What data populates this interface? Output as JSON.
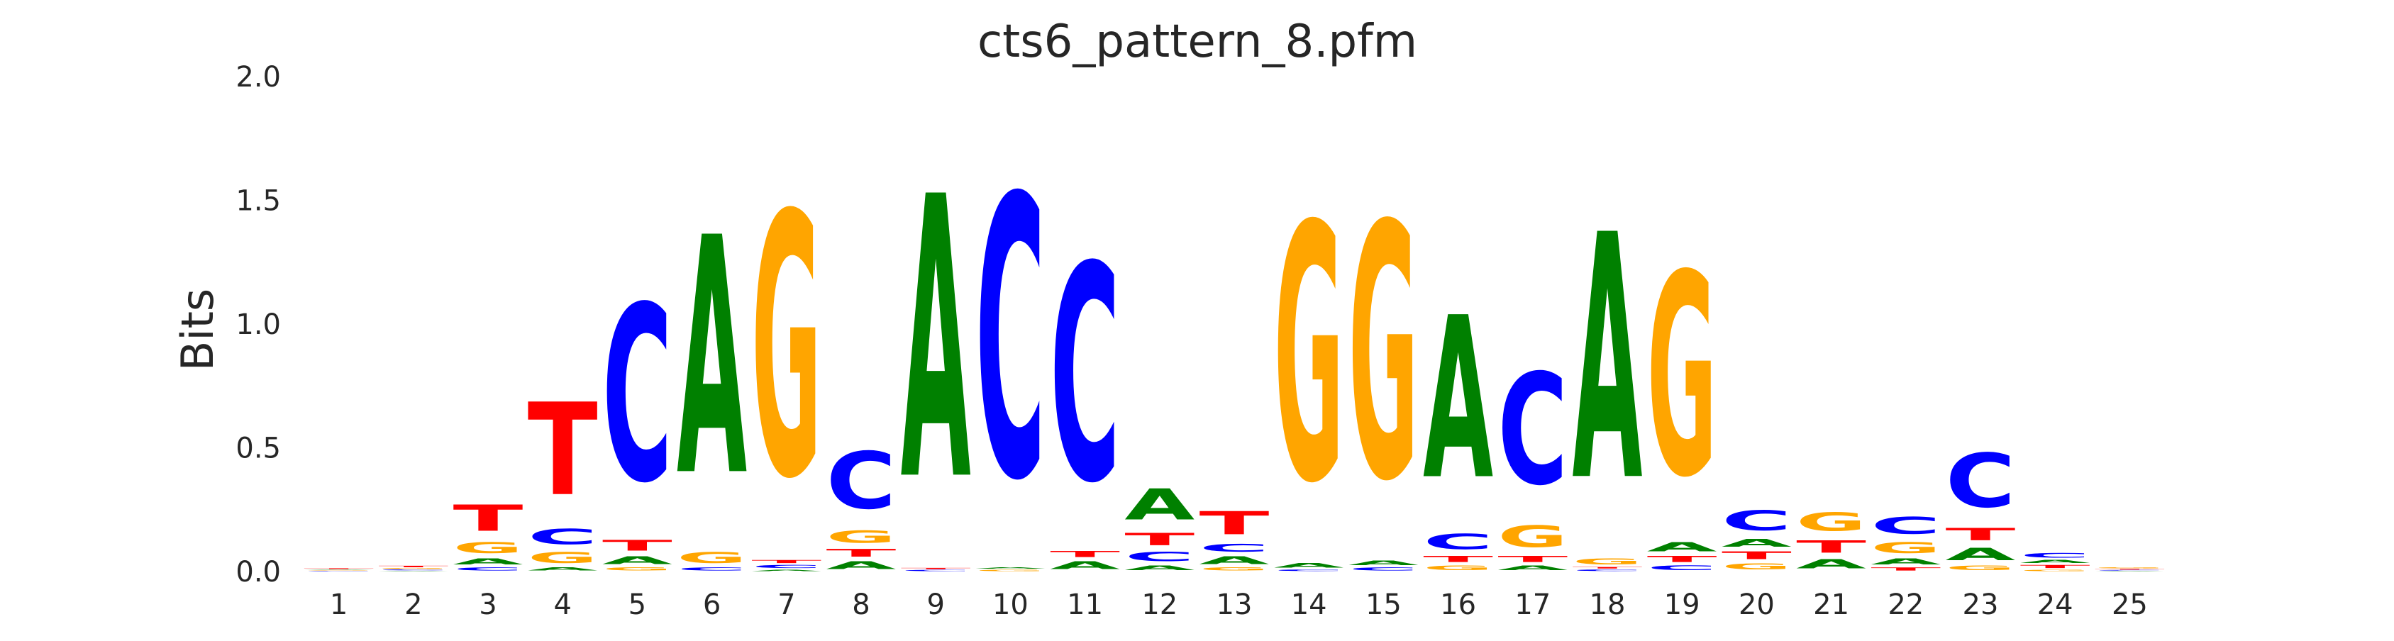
{
  "chart_data": {
    "type": "sequence-logo",
    "title": "cts6_pattern_8.pfm",
    "xlabel": "",
    "ylabel": "Bits",
    "ylim": [
      0,
      2.0
    ],
    "y_ticks": [
      "0.0",
      "0.5",
      "1.0",
      "1.5",
      "2.0"
    ],
    "x_ticks": [
      "1",
      "2",
      "3",
      "4",
      "5",
      "6",
      "7",
      "8",
      "9",
      "10",
      "11",
      "12",
      "13",
      "14",
      "15",
      "16",
      "17",
      "18",
      "19",
      "20",
      "21",
      "22",
      "23",
      "24",
      "25"
    ],
    "grid": false,
    "colors": {
      "A": "#008000",
      "C": "#0000ff",
      "G": "#ffa500",
      "T": "#ff0000"
    },
    "positions": [
      {
        "pos": 1,
        "stack": [
          [
            "C",
            0.003
          ],
          [
            "G",
            0.003
          ],
          [
            "A",
            0.003
          ],
          [
            "T",
            0.005
          ]
        ]
      },
      {
        "pos": 2,
        "stack": [
          [
            "A",
            0.004
          ],
          [
            "C",
            0.005
          ],
          [
            "G",
            0.006
          ],
          [
            "T",
            0.01
          ]
        ]
      },
      {
        "pos": 3,
        "stack": [
          [
            "C",
            0.02
          ],
          [
            "A",
            0.04
          ],
          [
            "G",
            0.07
          ],
          [
            "T",
            0.17
          ]
        ]
      },
      {
        "pos": 4,
        "stack": [
          [
            "A",
            0.02
          ],
          [
            "G",
            0.07
          ],
          [
            "C",
            0.1
          ],
          [
            "T",
            0.6
          ]
        ]
      },
      {
        "pos": 5,
        "stack": [
          [
            "G",
            0.02
          ],
          [
            "A",
            0.05
          ],
          [
            "T",
            0.07
          ],
          [
            "C",
            1.14
          ]
        ]
      },
      {
        "pos": 6,
        "stack": [
          [
            "C",
            0.02
          ],
          [
            "G",
            0.07
          ],
          [
            "A",
            1.54
          ]
        ]
      },
      {
        "pos": 7,
        "stack": [
          [
            "A",
            0.01
          ],
          [
            "C",
            0.02
          ],
          [
            "T",
            0.02
          ],
          [
            "G",
            1.7
          ]
        ]
      },
      {
        "pos": 8,
        "stack": [
          [
            "A",
            0.05
          ],
          [
            "T",
            0.05
          ],
          [
            "G",
            0.08
          ],
          [
            "C",
            0.37
          ]
        ]
      },
      {
        "pos": 9,
        "stack": [
          [
            "C",
            0.008
          ],
          [
            "T",
            0.008
          ],
          [
            "A",
            1.83
          ]
        ]
      },
      {
        "pos": 10,
        "stack": [
          [
            "G",
            0.01
          ],
          [
            "A",
            0.01
          ],
          [
            "C",
            1.82
          ]
        ]
      },
      {
        "pos": 11,
        "stack": [
          [
            "A",
            0.05
          ],
          [
            "T",
            0.04
          ],
          [
            "C",
            1.4
          ]
        ]
      },
      {
        "pos": 12,
        "stack": [
          [
            "A",
            0.03
          ],
          [
            "C",
            0.06
          ],
          [
            "T",
            0.08
          ],
          [
            "A",
            0.2
          ]
        ]
      },
      {
        "pos": 13,
        "stack": [
          [
            "G",
            0.02
          ],
          [
            "A",
            0.05
          ],
          [
            "C",
            0.05
          ],
          [
            "T",
            0.15
          ]
        ]
      },
      {
        "pos": 14,
        "stack": [
          [
            "C",
            0.01
          ],
          [
            "A",
            0.03
          ],
          [
            "G",
            1.66
          ]
        ]
      },
      {
        "pos": 15,
        "stack": [
          [
            "C",
            0.02
          ],
          [
            "A",
            0.03
          ],
          [
            "G",
            1.65
          ]
        ]
      },
      {
        "pos": 16,
        "stack": [
          [
            "G",
            0.03
          ],
          [
            "T",
            0.04
          ],
          [
            "C",
            0.1
          ],
          [
            "A",
            1.05
          ]
        ]
      },
      {
        "pos": 17,
        "stack": [
          [
            "A",
            0.03
          ],
          [
            "T",
            0.04
          ],
          [
            "G",
            0.14
          ],
          [
            "C",
            0.72
          ]
        ]
      },
      {
        "pos": 18,
        "stack": [
          [
            "C",
            0.01
          ],
          [
            "T",
            0.01
          ],
          [
            "G",
            0.04
          ],
          [
            "A",
            1.59
          ]
        ]
      },
      {
        "pos": 19,
        "stack": [
          [
            "C",
            0.03
          ],
          [
            "T",
            0.04
          ],
          [
            "A",
            0.06
          ],
          [
            "G",
            1.31
          ]
        ]
      },
      {
        "pos": 20,
        "stack": [
          [
            "G",
            0.04
          ],
          [
            "T",
            0.05
          ],
          [
            "A",
            0.05
          ],
          [
            "C",
            0.13
          ]
        ]
      },
      {
        "pos": 21,
        "stack": [
          [
            "A",
            0.06
          ],
          [
            "T",
            0.08
          ],
          [
            "G",
            0.12
          ]
        ]
      },
      {
        "pos": 22,
        "stack": [
          [
            "T",
            0.02
          ],
          [
            "A",
            0.04
          ],
          [
            "G",
            0.07
          ],
          [
            "C",
            0.11
          ]
        ]
      },
      {
        "pos": 23,
        "stack": [
          [
            "G",
            0.03
          ],
          [
            "A",
            0.08
          ],
          [
            "T",
            0.08
          ],
          [
            "C",
            0.35
          ]
        ]
      },
      {
        "pos": 24,
        "stack": [
          [
            "G",
            0.01
          ],
          [
            "T",
            0.02
          ],
          [
            "A",
            0.02
          ],
          [
            "C",
            0.03
          ]
        ]
      },
      {
        "pos": 25,
        "stack": [
          [
            "A",
            0.003
          ],
          [
            "C",
            0.004
          ],
          [
            "T",
            0.005
          ],
          [
            "G",
            0.006
          ]
        ]
      }
    ]
  }
}
